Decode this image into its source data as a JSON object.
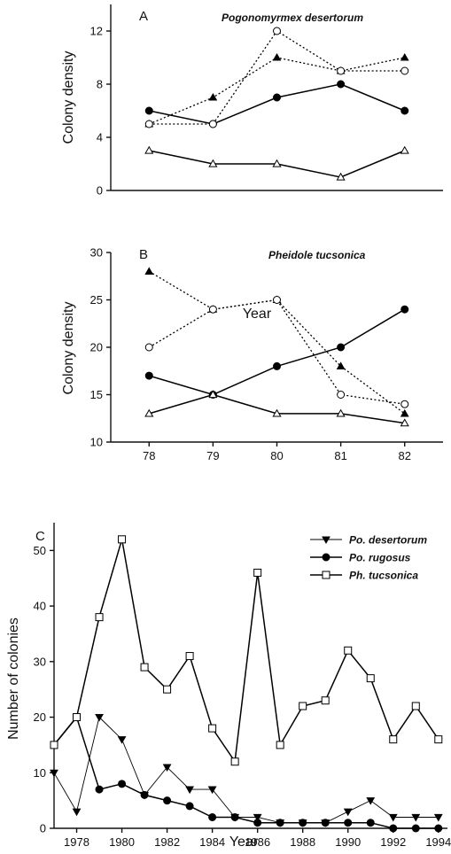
{
  "figure": {
    "panels": [
      {
        "letter": "A",
        "species_label": "Pogonomyrmex desertorum",
        "ylabel": "Colony density",
        "xlabel": ""
      },
      {
        "letter": "B",
        "species_label": "Pheidole tucsonica",
        "ylabel": "Colony density",
        "xlabel": "Year"
      },
      {
        "letter": "C",
        "species_label": "",
        "ylabel": "Number of colonies",
        "xlabel": "Year"
      }
    ]
  },
  "chart_data": [
    {
      "type": "line",
      "title": "Pogonomyrmex desertorum",
      "panel": "A",
      "xlabel": "",
      "ylabel": "Colony density",
      "x": [
        78,
        79,
        80,
        81,
        82
      ],
      "xlim": [
        77.4,
        82.6
      ],
      "ylim": [
        0,
        14
      ],
      "yticks": [
        0,
        4,
        8,
        12
      ],
      "xticks": [],
      "grid": false,
      "series": [
        {
          "values": [
            6,
            5,
            7,
            8,
            6
          ],
          "marker": "circle-filled",
          "line": "solid"
        },
        {
          "values": [
            5,
            7,
            10,
            9,
            10
          ],
          "marker": "triangle-filled",
          "line": "dotted"
        },
        {
          "values": [
            5,
            5,
            12,
            9,
            9
          ],
          "marker": "circle-open",
          "line": "dotted"
        },
        {
          "values": [
            3,
            2,
            2,
            1,
            3
          ],
          "marker": "triangle-open",
          "line": "solid"
        }
      ]
    },
    {
      "type": "line",
      "title": "Pheidole tucsonica",
      "panel": "B",
      "xlabel": "Year",
      "ylabel": "Colony density",
      "x": [
        78,
        79,
        80,
        81,
        82
      ],
      "xlim": [
        77.4,
        82.6
      ],
      "ylim": [
        10,
        30
      ],
      "yticks": [
        10,
        15,
        20,
        25,
        30
      ],
      "xticks": [
        78,
        79,
        80,
        81,
        82
      ],
      "grid": false,
      "series": [
        {
          "values": [
            17,
            15,
            18,
            20,
            24
          ],
          "marker": "circle-filled",
          "line": "solid"
        },
        {
          "values": [
            28,
            24,
            25,
            18,
            13
          ],
          "marker": "triangle-filled",
          "line": "dotted"
        },
        {
          "values": [
            20,
            24,
            25,
            15,
            14
          ],
          "marker": "circle-open",
          "line": "dotted"
        },
        {
          "values": [
            13,
            15,
            13,
            13,
            12
          ],
          "marker": "triangle-open",
          "line": "solid"
        }
      ]
    },
    {
      "type": "line",
      "title": "",
      "panel": "C",
      "xlabel": "Year",
      "ylabel": "Number of colonies",
      "x": [
        1977,
        1978,
        1979,
        1980,
        1981,
        1982,
        1983,
        1984,
        1985,
        1986,
        1987,
        1988,
        1989,
        1990,
        1991,
        1992,
        1993,
        1994
      ],
      "xlim": [
        1977,
        1994.4
      ],
      "ylim": [
        0,
        55
      ],
      "yticks": [
        0,
        10,
        20,
        30,
        40,
        50
      ],
      "xticks": [
        1978,
        1980,
        1982,
        1984,
        1986,
        1988,
        1990,
        1992,
        1994
      ],
      "grid": false,
      "legend_position": "top-right",
      "series": [
        {
          "name": "Po. desertorum",
          "marker": "triangle-down-filled",
          "line": "solid-thin",
          "values": [
            10,
            3,
            20,
            16,
            6,
            11,
            7,
            7,
            2,
            2,
            1,
            1,
            1,
            3,
            5,
            2,
            2,
            2
          ]
        },
        {
          "name": "Po. rugosus",
          "marker": "circle-filled",
          "line": "solid",
          "values": [
            15,
            20,
            7,
            8,
            6,
            5,
            4,
            2,
            2,
            1,
            1,
            1,
            1,
            1,
            1,
            0,
            0,
            0
          ]
        },
        {
          "name": "Ph. tucsonica",
          "marker": "square-open",
          "line": "solid",
          "values": [
            15,
            20,
            38,
            52,
            29,
            25,
            31,
            18,
            12,
            46,
            15,
            22,
            23,
            32,
            27,
            16,
            22,
            16
          ]
        }
      ]
    }
  ]
}
